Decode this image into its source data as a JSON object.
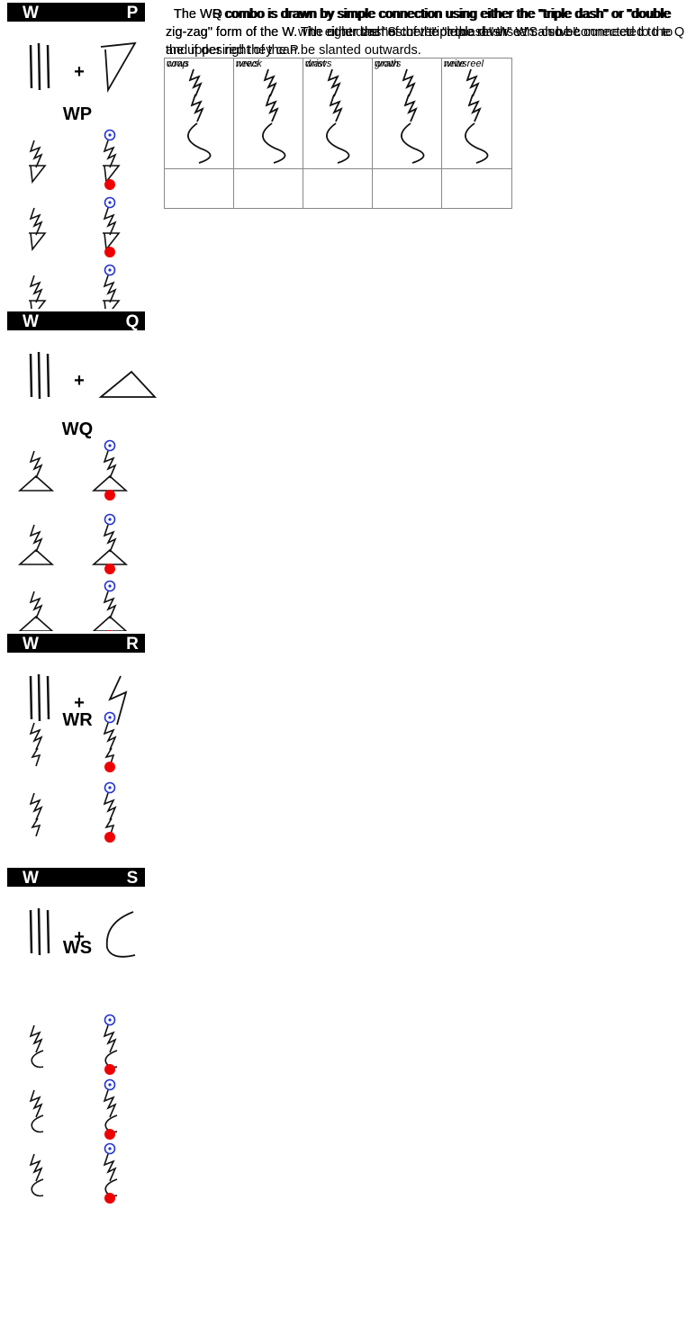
{
  "rows": [
    {
      "left_letter": "W",
      "right_letter": "P",
      "plus": "+",
      "combo": "WP",
      "description": "The WP combo is drawn by simple connection using either the \"triple dash\" or \"double zig-zag\" form of the W. The right dash of the \"triple dash\" W can also be connected to to the upper right of the P.",
      "examples": []
    },
    {
      "left_letter": "W",
      "right_letter": "Q",
      "plus": "+",
      "combo": "WQ",
      "description": "The WQ combo is drawn by simple connection using either the \"triple dash\" or \"double zig-zag\" form of the W. The outer dashes of the \"triple dash\" W can be connected to the Q and if desired they can be slanted outwards.",
      "examples": []
    },
    {
      "left_letter": "W",
      "right_letter": "R",
      "plus": "+",
      "combo": "WR",
      "description": "The WR combo is drawn by simple connection using either the \"triple dash\" or \"double zig-zag\" form of the W.",
      "examples": [
        "wrap",
        "wreck",
        "wrist",
        "wrath",
        "write"
      ]
    },
    {
      "left_letter": "W",
      "right_letter": "S",
      "plus": "+",
      "combo": "WS",
      "description": "The WS combo is drawn by simple connection using either the \"triple dash\" or \"double zig-zag\" form of the W with either the \"S curve\" or the reverse \"S curve\".",
      "examples": [
        "cows",
        "news",
        "draws",
        "grows",
        "newsreel"
      ]
    }
  ]
}
